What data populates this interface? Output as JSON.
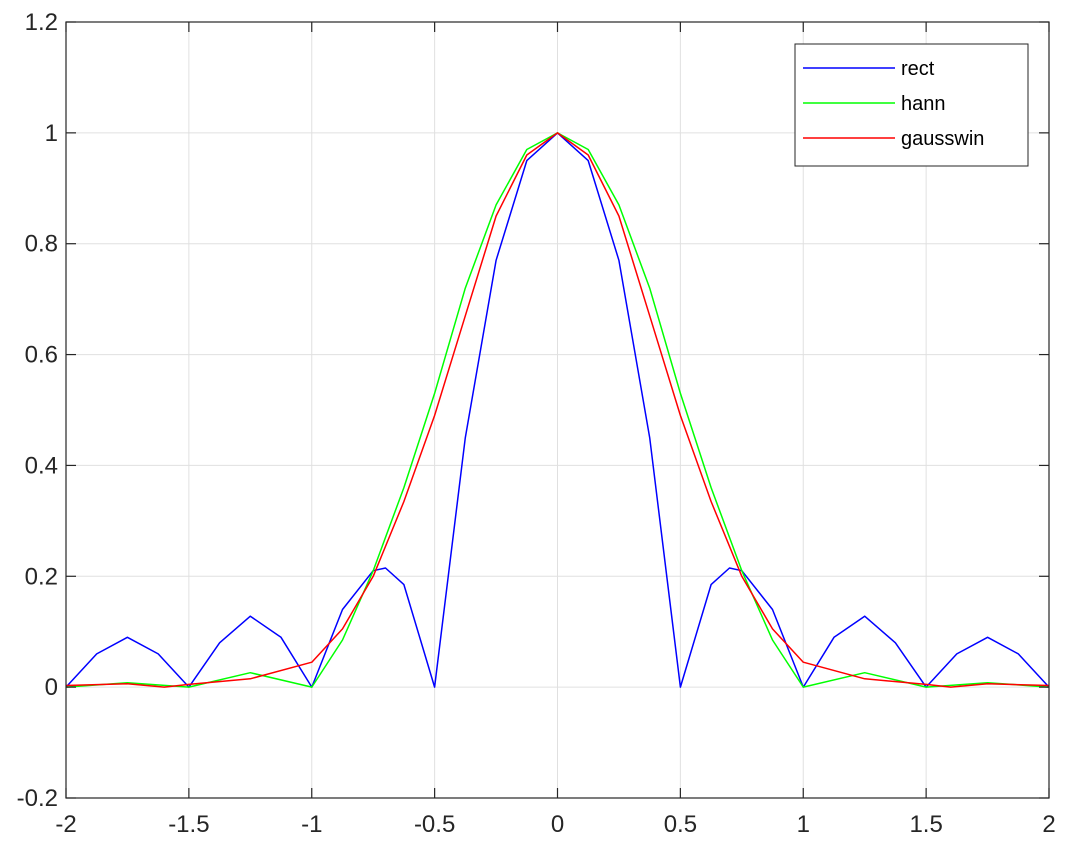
{
  "chart_data": {
    "type": "line",
    "title": "",
    "xlabel": "",
    "ylabel": "",
    "xlim": [
      -2,
      2
    ],
    "ylim": [
      -0.2,
      1.2
    ],
    "xticks": [
      -2,
      -1.5,
      -1,
      -0.5,
      0,
      0.5,
      1,
      1.5,
      2
    ],
    "yticks": [
      -0.2,
      0,
      0.2,
      0.4,
      0.6,
      0.8,
      1,
      1.2
    ],
    "xtick_labels": [
      "-2",
      "-1.5",
      "-1",
      "-0.5",
      "0",
      "0.5",
      "1",
      "1.5",
      "2"
    ],
    "ytick_labels": [
      "-0.2",
      "0",
      "0.2",
      "0.4",
      "0.6",
      "0.8",
      "1",
      "1.2"
    ],
    "grid": true,
    "legend_position": "top-right",
    "series": [
      {
        "name": "rect",
        "color": "#0000ff",
        "x": [
          -2,
          -1.875,
          -1.75,
          -1.625,
          -1.5,
          -1.375,
          -1.25,
          -1.125,
          -1,
          -0.875,
          -0.75,
          -0.7,
          -0.625,
          -0.5,
          -0.375,
          -0.25,
          -0.125,
          0,
          0.125,
          0.25,
          0.375,
          0.5,
          0.625,
          0.7,
          0.75,
          0.875,
          1,
          1.125,
          1.25,
          1.375,
          1.5,
          1.625,
          1.75,
          1.875,
          2
        ],
        "y": [
          0,
          0.06,
          0.09,
          0.06,
          0,
          0.08,
          0.128,
          0.09,
          0,
          0.14,
          0.21,
          0.215,
          0.185,
          0,
          0.45,
          0.77,
          0.95,
          1,
          0.95,
          0.77,
          0.45,
          0,
          0.185,
          0.215,
          0.21,
          0.14,
          0,
          0.09,
          0.128,
          0.08,
          0,
          0.06,
          0.09,
          0.06,
          0
        ]
      },
      {
        "name": "hann",
        "color": "#00ff00",
        "x": [
          -2,
          -1.75,
          -1.5,
          -1.25,
          -1,
          -0.875,
          -0.75,
          -0.625,
          -0.5,
          -0.375,
          -0.25,
          -0.125,
          0,
          0.125,
          0.25,
          0.375,
          0.5,
          0.625,
          0.75,
          0.875,
          1,
          1.25,
          1.5,
          1.75,
          2
        ],
        "y": [
          0,
          0.008,
          0,
          0.026,
          0,
          0.085,
          0.21,
          0.36,
          0.53,
          0.72,
          0.87,
          0.97,
          1,
          0.97,
          0.87,
          0.72,
          0.53,
          0.36,
          0.21,
          0.085,
          0,
          0.026,
          0,
          0.008,
          0
        ]
      },
      {
        "name": "gausswin",
        "color": "#ff0000",
        "x": [
          -2,
          -1.75,
          -1.6,
          -1.5,
          -1.25,
          -1,
          -0.875,
          -0.75,
          -0.625,
          -0.5,
          -0.375,
          -0.25,
          -0.125,
          0,
          0.125,
          0.25,
          0.375,
          0.5,
          0.625,
          0.75,
          0.875,
          1,
          1.25,
          1.5,
          1.6,
          1.75,
          2
        ],
        "y": [
          0.003,
          0.006,
          0,
          0.005,
          0.015,
          0.045,
          0.105,
          0.2,
          0.335,
          0.49,
          0.67,
          0.85,
          0.96,
          1,
          0.96,
          0.85,
          0.67,
          0.49,
          0.335,
          0.2,
          0.105,
          0.045,
          0.015,
          0.005,
          0,
          0.006,
          0.003
        ]
      }
    ]
  }
}
